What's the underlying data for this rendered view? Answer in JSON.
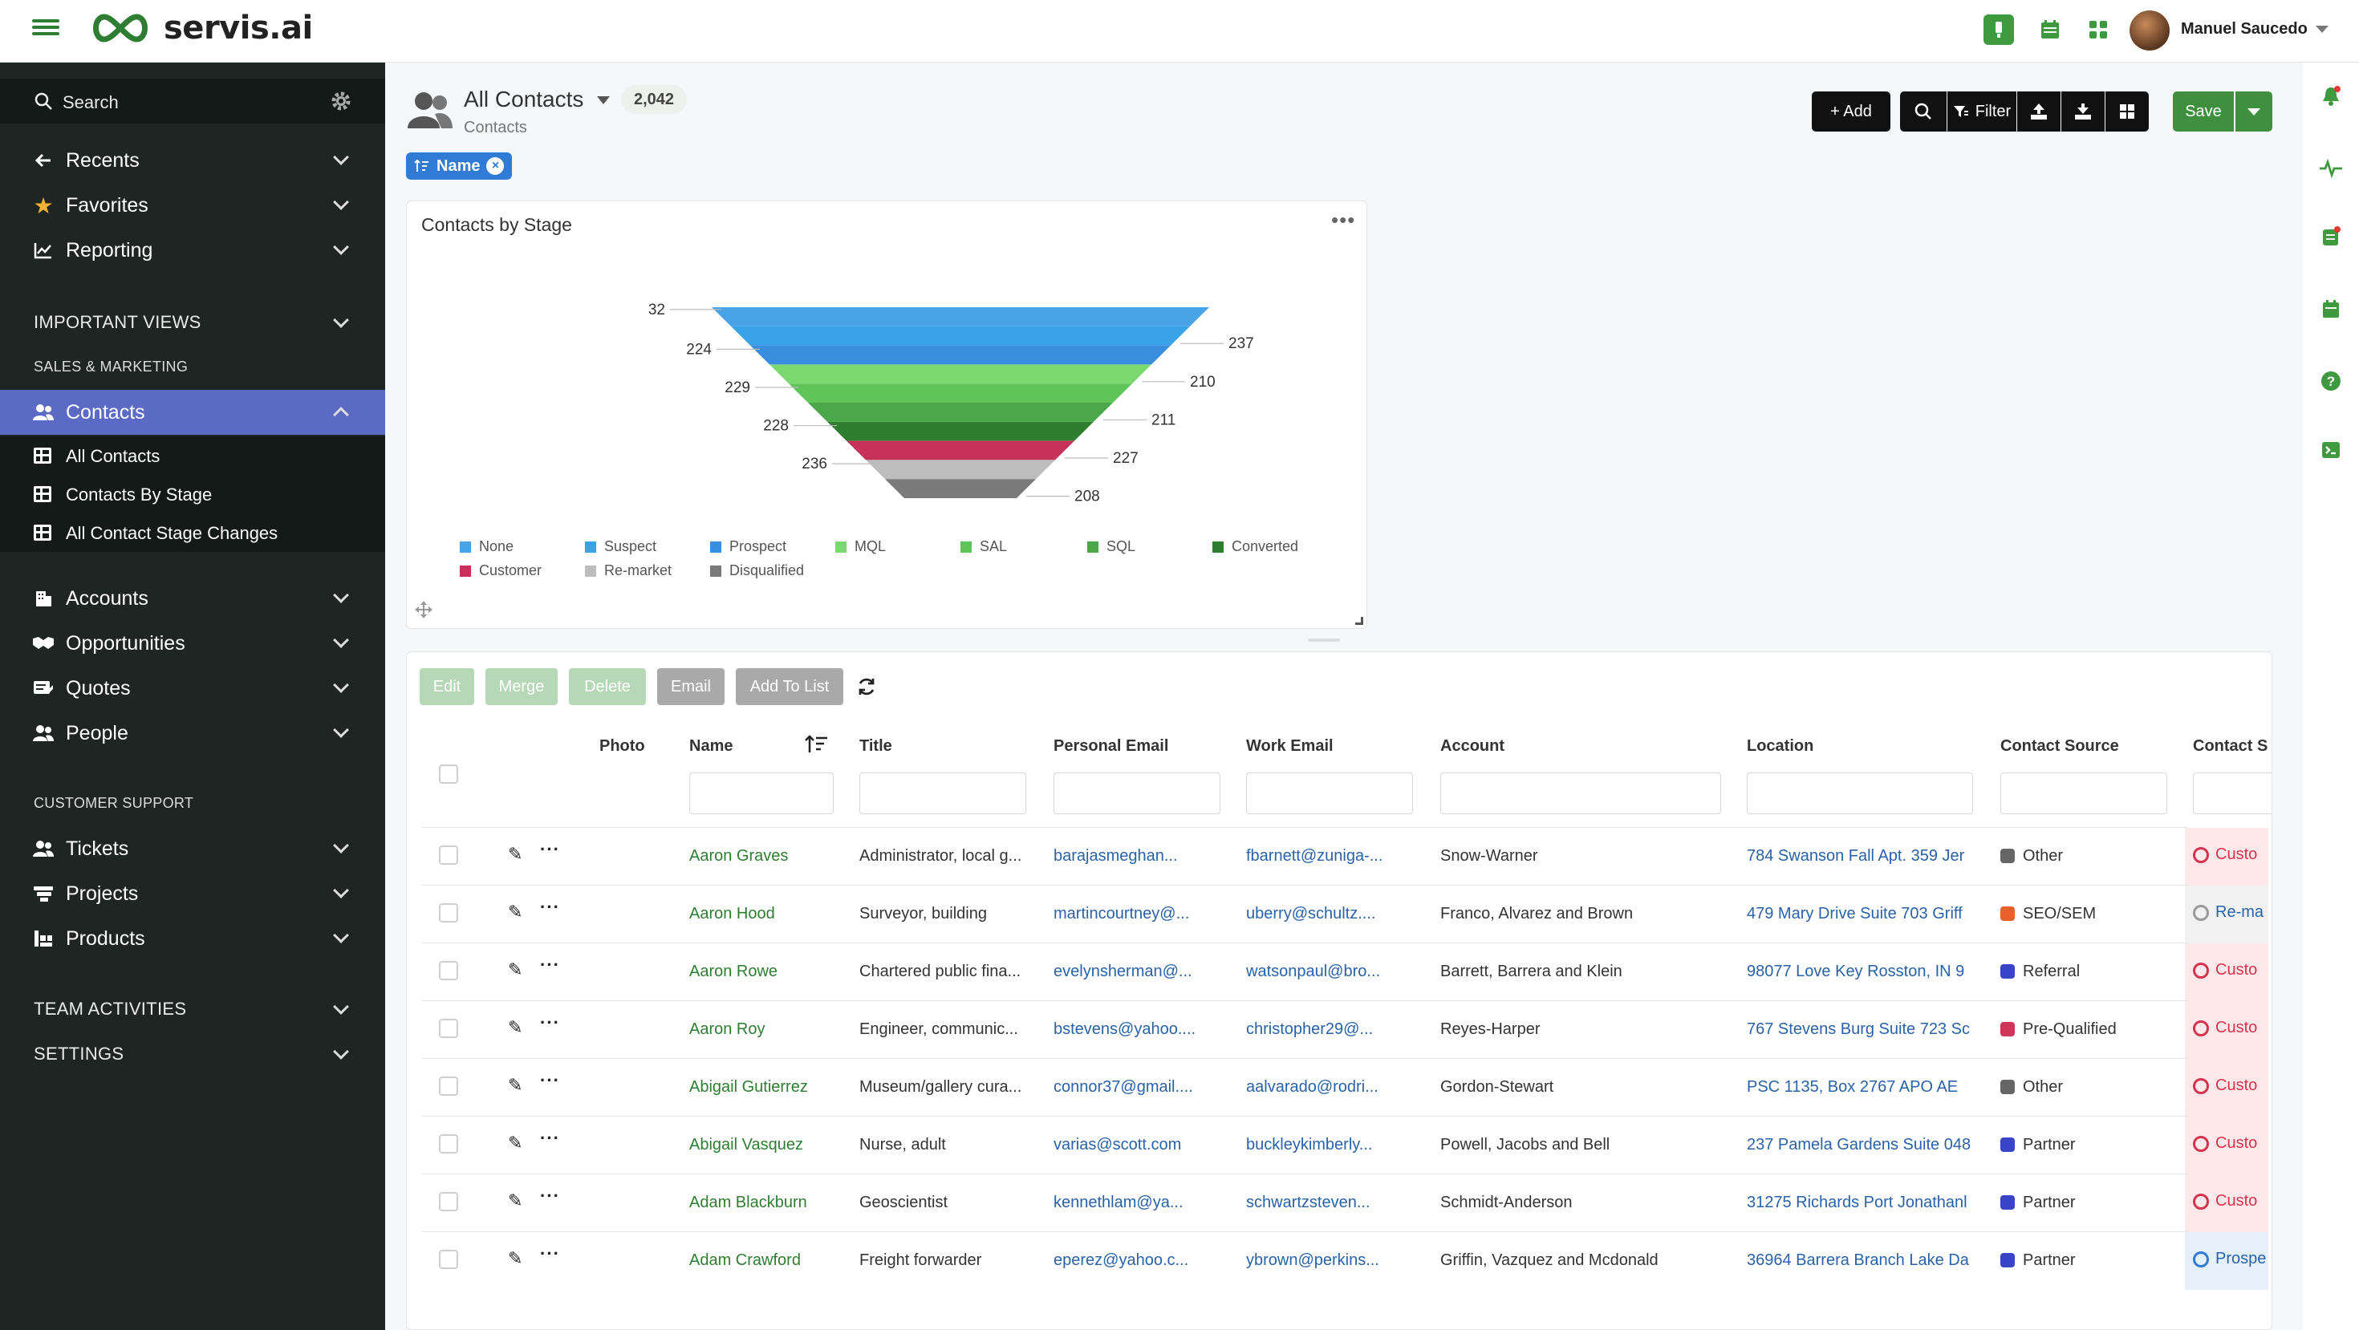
{
  "app": {
    "name": "servis.ai",
    "user": "Manuel Saucedo"
  },
  "sidebar": {
    "search_label": "Search",
    "nav_top": [
      {
        "label": "Recents"
      },
      {
        "label": "Favorites"
      },
      {
        "label": "Reporting"
      }
    ],
    "important_views": "IMPORTANT VIEWS",
    "sales_marketing": "SALES & MARKETING",
    "contacts": "Contacts",
    "sub_items": [
      "All Contacts",
      "Contacts By Stage",
      "All Contact Stage Changes"
    ],
    "sales_items": [
      "Accounts",
      "Opportunities",
      "Quotes",
      "People"
    ],
    "customer_support": "CUSTOMER SUPPORT",
    "support_items": [
      "Tickets",
      "Projects",
      "Products"
    ],
    "team_activities": "TEAM ACTIVITIES",
    "settings": "SETTINGS"
  },
  "header": {
    "title": "All Contacts",
    "count": "2,042",
    "subtitle": "Contacts",
    "sort_chip": "Name",
    "add_label": "+ Add",
    "filter_label": "Filter",
    "save_label": "Save"
  },
  "chart_card": {
    "title": "Contacts by Stage"
  },
  "chart_data": {
    "type": "funnel",
    "title": "Contacts by Stage",
    "categories": [
      "None",
      "Suspect",
      "Prospect",
      "MQL",
      "SAL",
      "SQL",
      "Converted",
      "Customer",
      "Re-market",
      "Disqualified"
    ],
    "values": [
      32,
      237,
      224,
      210,
      229,
      211,
      228,
      227,
      236,
      208
    ],
    "colors": [
      "#4aa3e6",
      "#3aa2e8",
      "#3a8ee0",
      "#79d96e",
      "#5fc55a",
      "#4aa84a",
      "#2f7d2f",
      "#c8325a",
      "#bdbdbd",
      "#7a7a7a"
    ],
    "legend": "bottom"
  },
  "toolbar": {
    "edit": "Edit",
    "merge": "Merge",
    "delete": "Delete",
    "email": "Email",
    "add_to_list": "Add To List"
  },
  "table": {
    "columns": [
      "Photo",
      "Name",
      "Title",
      "Personal Email",
      "Work Email",
      "Account",
      "Location",
      "Contact Source",
      "Contact S"
    ],
    "rows": [
      {
        "name": "Aaron Graves",
        "title": "Administrator, local g...",
        "pemail": "barajasmeghan...",
        "wemail": "fbarnett@zuniga-...",
        "account": "Snow-Warner",
        "location": "784 Swanson Fall Apt. 359 Jer",
        "source": "Other",
        "source_color": "#666666",
        "stage": "Custo"
      },
      {
        "name": "Aaron Hood",
        "title": "Surveyor, building",
        "pemail": "martincourtney@...",
        "wemail": "uberry@schultz....",
        "account": "Franco, Alvarez and Brown",
        "location": "479 Mary Drive Suite 703 Griff",
        "source": "SEO/SEM",
        "source_color": "#e8602c",
        "stage": "Re-ma"
      },
      {
        "name": "Aaron Rowe",
        "title": "Chartered public fina...",
        "pemail": "evelynsherman@...",
        "wemail": "watsonpaul@bro...",
        "account": "Barrett, Barrera and Klein",
        "location": "98077 Love Key Rosston, IN 9",
        "source": "Referral",
        "source_color": "#3a44c8",
        "stage": "Custo"
      },
      {
        "name": "Aaron Roy",
        "title": "Engineer, communic...",
        "pemail": "bstevens@yahoo....",
        "wemail": "christopher29@...",
        "account": "Reyes-Harper",
        "location": "767 Stevens Burg Suite 723 Sc",
        "source": "Pre-Qualified",
        "source_color": "#d0355a",
        "stage": "Custo"
      },
      {
        "name": "Abigail Gutierrez",
        "title": "Museum/gallery cura...",
        "pemail": "connor37@gmail....",
        "wemail": "aalvarado@rodri...",
        "account": "Gordon-Stewart",
        "location": "PSC 1135, Box 2767 APO AE",
        "source": "Other",
        "source_color": "#666666",
        "stage": "Custo"
      },
      {
        "name": "Abigail Vasquez",
        "title": "Nurse, adult",
        "pemail": "varias@scott.com",
        "wemail": "buckleykimberly...",
        "account": "Powell, Jacobs and Bell",
        "location": "237 Pamela Gardens Suite 048",
        "source": "Partner",
        "source_color": "#3a44c8",
        "stage": "Custo"
      },
      {
        "name": "Adam Blackburn",
        "title": "Geoscientist",
        "pemail": "kennethlam@ya...",
        "wemail": "schwartzsteven...",
        "account": "Schmidt-Anderson",
        "location": "31275 Richards Port Jonathanl",
        "source": "Partner",
        "source_color": "#3a44c8",
        "stage": "Custo"
      },
      {
        "name": "Adam Crawford",
        "title": "Freight forwarder",
        "pemail": "eperez@yahoo.c...",
        "wemail": "ybrown@perkins...",
        "account": "Griffin, Vazquez and Mcdonald",
        "location": "36964 Barrera Branch Lake Da",
        "source": "Partner",
        "source_color": "#3a44c8",
        "stage": "Prospe"
      }
    ]
  },
  "colors": {
    "accent_green": "#3f8f3f",
    "sidebar_bg": "#1e2522",
    "active_nav": "#5b6ac4",
    "link_green": "#2e7d32",
    "link_blue": "#2962a8"
  }
}
